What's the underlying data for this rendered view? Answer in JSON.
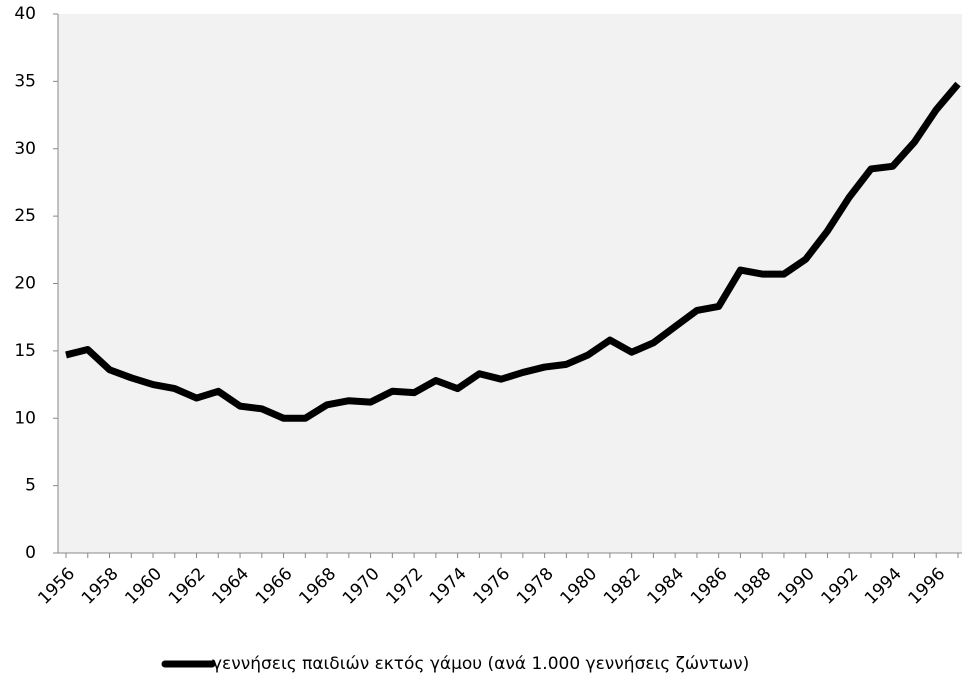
{
  "chart_data": {
    "type": "line",
    "categories": [
      "1956",
      null,
      "1958",
      null,
      "1960",
      null,
      "1962",
      null,
      "1964",
      null,
      "1966",
      null,
      "1968",
      null,
      "1970",
      null,
      "1972",
      null,
      "1974",
      null,
      "1976",
      null,
      "1978",
      null,
      "1980",
      null,
      "1982",
      null,
      "1984",
      null,
      "1986",
      null,
      "1988",
      null,
      "1990",
      null,
      "1992",
      null,
      "1994",
      null,
      "1996",
      null
    ],
    "series": [
      {
        "name": "γεννήσεις παιδιών εκτός γάμου (ανά 1.000 γεννήσεις ζώντων)",
        "color": "#000000",
        "values": [
          14.7,
          15.1,
          13.6,
          13.0,
          12.5,
          12.2,
          11.5,
          12.0,
          10.9,
          10.7,
          10.0,
          10.0,
          11.0,
          11.3,
          11.2,
          12.0,
          11.9,
          12.8,
          12.2,
          13.3,
          12.9,
          13.4,
          13.8,
          14.0,
          14.7,
          15.8,
          14.9,
          15.6,
          16.8,
          18.0,
          18.3,
          21.0,
          20.7,
          20.7,
          21.8,
          23.9,
          26.4,
          28.5,
          28.7,
          30.5,
          32.9,
          34.8
        ]
      }
    ],
    "ylim": [
      0,
      40
    ],
    "yticks": [
      0,
      5,
      10,
      15,
      20,
      25,
      30,
      35,
      40
    ],
    "grid": false,
    "legend": "bottom",
    "background": "#f2f2f2"
  }
}
